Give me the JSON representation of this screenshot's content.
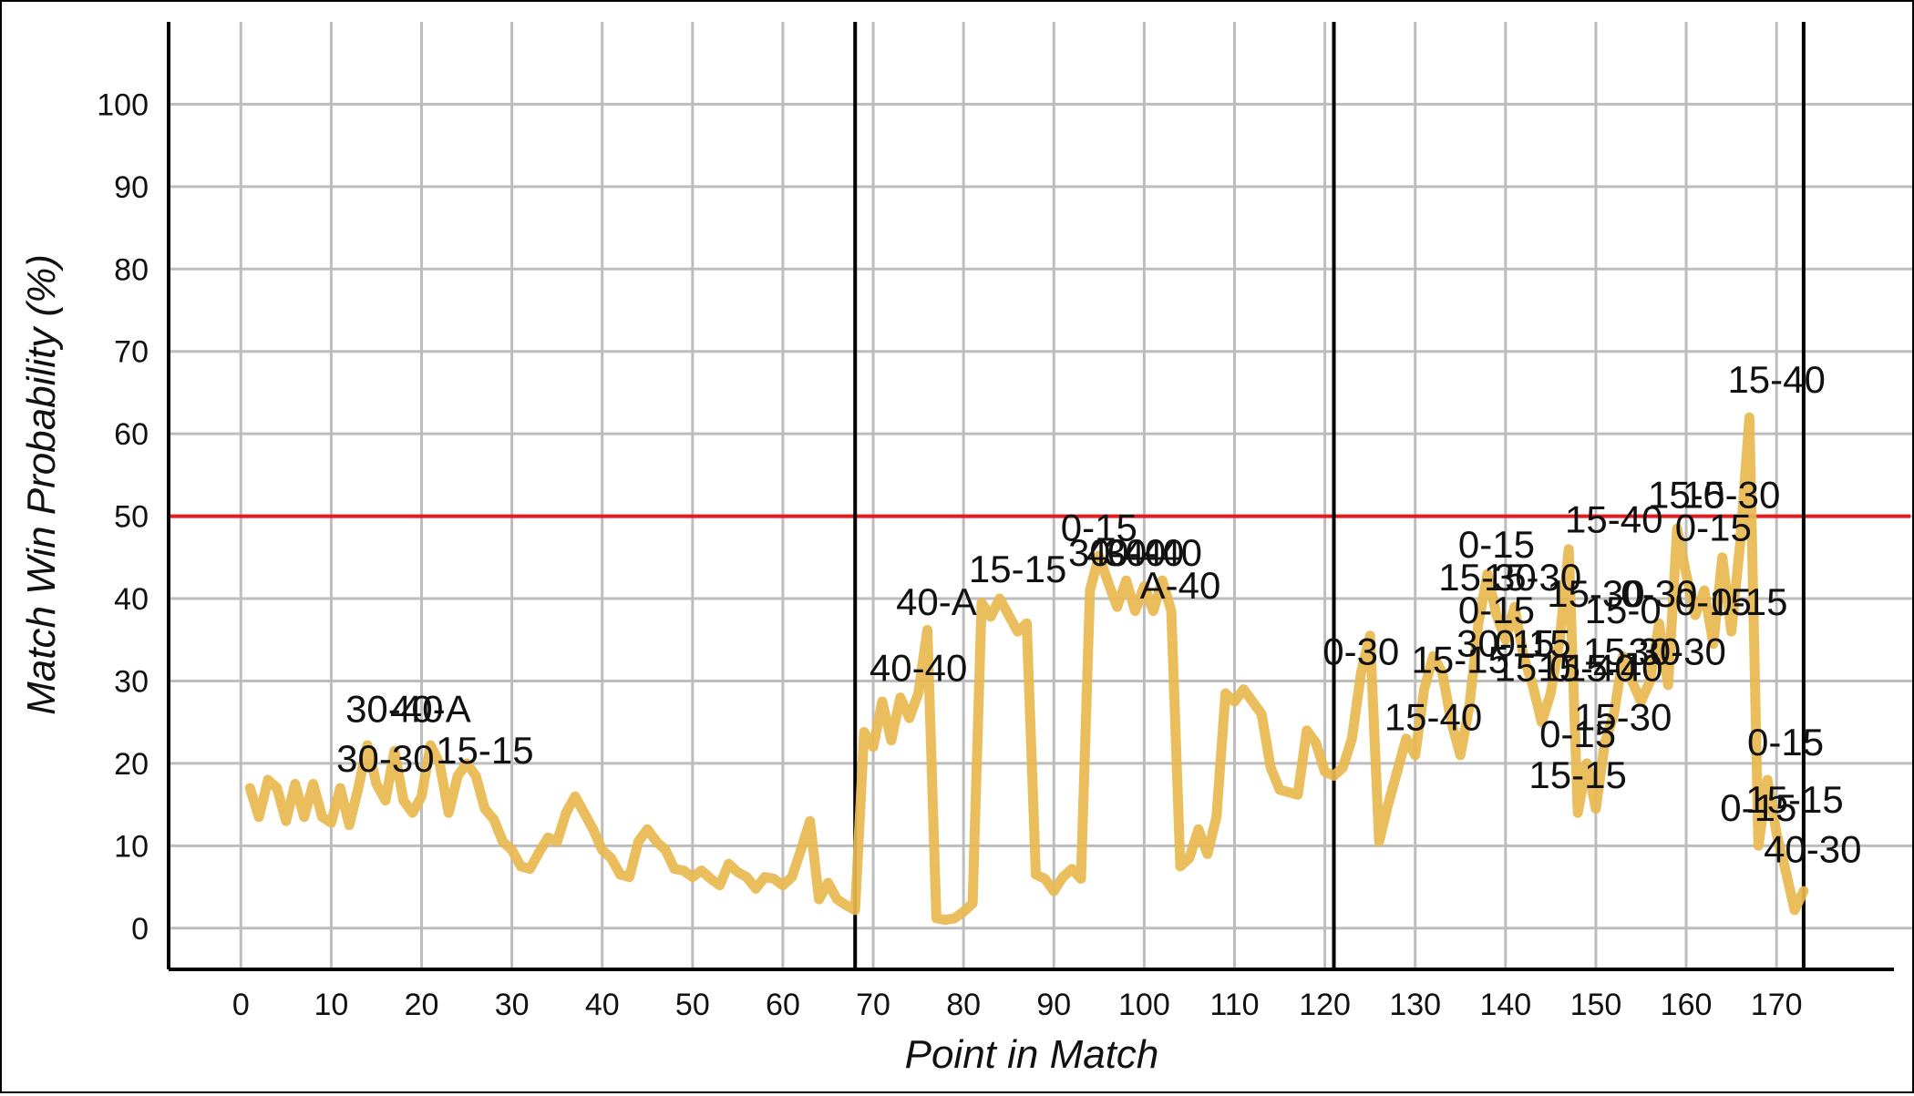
{
  "colors": {
    "series": "#E8B84E",
    "reference": "#E8191C",
    "grid": "#BDBDBD",
    "divider": "#000000"
  },
  "chart_data": {
    "type": "line",
    "title": "",
    "xlabel": "Point in Match",
    "ylabel": "Match Win Probability (%)",
    "xlim": [
      -8,
      183
    ],
    "ylim": [
      -5,
      110
    ],
    "grid": true,
    "x_ticks": [
      0,
      10,
      20,
      30,
      40,
      50,
      60,
      70,
      80,
      90,
      100,
      110,
      120,
      130,
      140,
      150,
      160,
      170
    ],
    "y_ticks": [
      0,
      10,
      20,
      30,
      40,
      50,
      60,
      70,
      80,
      90,
      100
    ],
    "reference_line": {
      "y": 50
    },
    "set_dividers": [
      68,
      121,
      173
    ],
    "series": [
      {
        "values": [
          [
            1,
            17
          ],
          [
            2,
            13.5
          ],
          [
            3,
            18
          ],
          [
            4,
            17
          ],
          [
            5,
            13
          ],
          [
            6,
            17.5
          ],
          [
            7,
            13.5
          ],
          [
            8,
            17.5
          ],
          [
            9,
            13.5
          ],
          [
            10,
            12.8
          ],
          [
            11,
            17
          ],
          [
            12,
            12.5
          ],
          [
            13,
            17
          ],
          [
            14,
            22.2
          ],
          [
            15,
            17.5
          ],
          [
            16,
            15.5
          ],
          [
            17,
            21.5
          ],
          [
            18,
            15.5
          ],
          [
            19,
            14
          ],
          [
            20,
            16
          ],
          [
            21,
            22.2
          ],
          [
            22,
            20
          ],
          [
            23,
            14
          ],
          [
            24,
            18.5
          ],
          [
            25,
            20
          ],
          [
            26,
            18.5
          ],
          [
            27,
            14.5
          ],
          [
            28,
            13.2
          ],
          [
            29,
            10.5
          ],
          [
            30,
            9.5
          ],
          [
            31,
            7.5
          ],
          [
            32,
            7.2
          ],
          [
            33,
            9.2
          ],
          [
            34,
            11
          ],
          [
            35,
            10.5
          ],
          [
            36,
            14
          ],
          [
            37,
            16
          ],
          [
            38,
            14
          ],
          [
            39,
            12
          ],
          [
            40,
            9.5
          ],
          [
            41,
            8.5
          ],
          [
            42,
            6.5
          ],
          [
            43,
            6.2
          ],
          [
            44,
            10.5
          ],
          [
            45,
            12
          ],
          [
            46,
            10.5
          ],
          [
            47,
            9.5
          ],
          [
            48,
            7.2
          ],
          [
            49,
            7
          ],
          [
            50,
            6.2
          ],
          [
            51,
            7
          ],
          [
            52,
            6
          ],
          [
            53,
            5.2
          ],
          [
            54,
            7.8
          ],
          [
            55,
            6.8
          ],
          [
            56,
            6.2
          ],
          [
            57,
            4.8
          ],
          [
            58,
            6.2
          ],
          [
            59,
            6
          ],
          [
            60,
            5.2
          ],
          [
            61,
            6.2
          ],
          [
            62,
            9.5
          ],
          [
            63,
            13
          ],
          [
            64,
            3.5
          ],
          [
            65,
            5.5
          ],
          [
            66,
            3.5
          ],
          [
            67,
            2.8
          ],
          [
            68,
            2.2
          ],
          [
            69,
            23.8
          ],
          [
            70,
            22
          ],
          [
            71,
            27.5
          ],
          [
            72,
            22.8
          ],
          [
            73,
            28
          ],
          [
            74,
            25.5
          ],
          [
            75,
            28.5
          ],
          [
            76,
            36.2
          ],
          [
            77,
            1.2
          ],
          [
            78,
            1
          ],
          [
            79,
            1.2
          ],
          [
            80,
            2
          ],
          [
            81,
            3
          ],
          [
            82,
            39.5
          ],
          [
            83,
            37.8
          ],
          [
            84,
            40
          ],
          [
            85,
            38
          ],
          [
            86,
            36
          ],
          [
            87,
            37
          ],
          [
            88,
            6.5
          ],
          [
            89,
            6
          ],
          [
            90,
            4.5
          ],
          [
            91,
            6.2
          ],
          [
            92,
            7.2
          ],
          [
            93,
            6
          ],
          [
            94,
            41
          ],
          [
            95,
            45.2
          ],
          [
            96,
            42
          ],
          [
            97,
            39
          ],
          [
            98,
            42.2
          ],
          [
            99,
            38.5
          ],
          [
            100,
            41.5
          ],
          [
            101,
            38.5
          ],
          [
            102,
            42.2
          ],
          [
            103,
            38.5
          ],
          [
            104,
            7.5
          ],
          [
            105,
            8.5
          ],
          [
            106,
            12
          ],
          [
            107,
            9
          ],
          [
            108,
            13.5
          ],
          [
            109,
            28.5
          ],
          [
            110,
            27.5
          ],
          [
            111,
            29
          ],
          [
            112,
            27.5
          ],
          [
            113,
            26
          ],
          [
            114,
            19.5
          ],
          [
            115,
            16.8
          ],
          [
            116,
            16.5
          ],
          [
            117,
            16.2
          ],
          [
            118,
            24
          ],
          [
            119,
            22.5
          ],
          [
            120,
            19
          ],
          [
            121,
            18.5
          ],
          [
            122,
            19.5
          ],
          [
            123,
            23
          ],
          [
            124,
            31
          ],
          [
            125,
            35.5
          ],
          [
            126,
            10.5
          ],
          [
            127,
            15
          ],
          [
            128,
            19
          ],
          [
            129,
            23
          ],
          [
            130,
            21
          ],
          [
            131,
            29
          ],
          [
            132,
            33
          ],
          [
            133,
            31
          ],
          [
            134,
            25
          ],
          [
            135,
            21
          ],
          [
            136,
            27
          ],
          [
            137,
            37
          ],
          [
            138,
            43
          ],
          [
            139,
            38
          ],
          [
            140,
            35
          ],
          [
            141,
            39
          ],
          [
            142,
            33
          ],
          [
            143,
            29.5
          ],
          [
            144,
            25
          ],
          [
            145,
            28.5
          ],
          [
            146,
            35
          ],
          [
            147,
            46
          ],
          [
            148,
            14
          ],
          [
            149,
            20
          ],
          [
            150,
            14.5
          ],
          [
            151,
            22.5
          ],
          [
            152,
            26
          ],
          [
            153,
            33
          ],
          [
            154,
            30
          ],
          [
            155,
            27.5
          ],
          [
            156,
            30
          ],
          [
            157,
            37
          ],
          [
            158,
            29.5
          ],
          [
            159,
            48.5
          ],
          [
            160,
            43
          ],
          [
            161,
            38
          ],
          [
            162,
            41
          ],
          [
            163,
            34.5
          ],
          [
            164,
            45
          ],
          [
            165,
            36
          ],
          [
            166,
            47
          ],
          [
            167,
            62
          ],
          [
            168,
            10
          ],
          [
            169,
            18
          ],
          [
            170,
            11.5
          ],
          [
            171,
            7
          ],
          [
            172,
            2.2
          ],
          [
            173,
            4.5
          ]
        ]
      }
    ],
    "annotations": [
      {
        "text": "30-40",
        "x": 17,
        "y": 25
      },
      {
        "text": "40-A",
        "x": 21,
        "y": 25
      },
      {
        "text": "30-30",
        "x": 16,
        "y": 19
      },
      {
        "text": "15-15",
        "x": 27,
        "y": 20
      },
      {
        "text": "40-40",
        "x": 75,
        "y": 30
      },
      {
        "text": "40-A",
        "x": 77,
        "y": 38
      },
      {
        "text": "15-15",
        "x": 86,
        "y": 42
      },
      {
        "text": "0-15",
        "x": 95,
        "y": 47
      },
      {
        "text": "30-40",
        "x": 97,
        "y": 44
      },
      {
        "text": "40-40",
        "x": 99,
        "y": 44
      },
      {
        "text": "30-40",
        "x": 101,
        "y": 44
      },
      {
        "text": "A-40",
        "x": 104,
        "y": 40
      },
      {
        "text": "0-30",
        "x": 124,
        "y": 32
      },
      {
        "text": "15-15",
        "x": 135,
        "y": 31
      },
      {
        "text": "15-40",
        "x": 132,
        "y": 24
      },
      {
        "text": "0-15",
        "x": 139,
        "y": 45
      },
      {
        "text": "15-30",
        "x": 138,
        "y": 41
      },
      {
        "text": "15-30",
        "x": 143,
        "y": 41
      },
      {
        "text": "15-40",
        "x": 152,
        "y": 48
      },
      {
        "text": "0-15",
        "x": 139,
        "y": 37
      },
      {
        "text": "30-15",
        "x": 140,
        "y": 33
      },
      {
        "text": "0-15",
        "x": 143,
        "y": 33
      },
      {
        "text": "15-0",
        "x": 143,
        "y": 30
      },
      {
        "text": "15-30",
        "x": 150,
        "y": 39
      },
      {
        "text": "15-0",
        "x": 153,
        "y": 37
      },
      {
        "text": "0-30",
        "x": 157,
        "y": 39
      },
      {
        "text": "0-15",
        "x": 163,
        "y": 38
      },
      {
        "text": "0-15",
        "x": 167,
        "y": 38
      },
      {
        "text": "15-40",
        "x": 149,
        "y": 30
      },
      {
        "text": "15-30",
        "x": 154,
        "y": 32
      },
      {
        "text": "15-40",
        "x": 152,
        "y": 30
      },
      {
        "text": "30-30",
        "x": 159,
        "y": 32
      },
      {
        "text": "15-30",
        "x": 153,
        "y": 24
      },
      {
        "text": "0-15",
        "x": 148,
        "y": 22
      },
      {
        "text": "15-15",
        "x": 148,
        "y": 17
      },
      {
        "text": "15-0",
        "x": 160,
        "y": 51
      },
      {
        "text": "15-30",
        "x": 165,
        "y": 51
      },
      {
        "text": "0-15",
        "x": 163,
        "y": 47
      },
      {
        "text": "15-40",
        "x": 170,
        "y": 65
      },
      {
        "text": "0-15",
        "x": 171,
        "y": 21
      },
      {
        "text": "15-15",
        "x": 172,
        "y": 14
      },
      {
        "text": "0-15",
        "x": 168,
        "y": 13
      },
      {
        "text": "40-30",
        "x": 174,
        "y": 8
      }
    ]
  }
}
